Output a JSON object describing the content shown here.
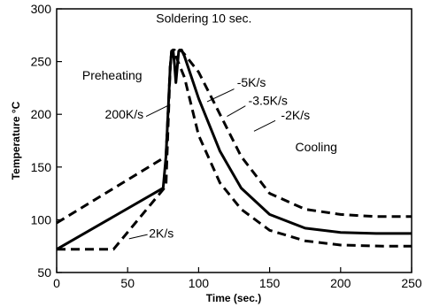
{
  "chart_data": {
    "type": "line",
    "title": "",
    "xlabel": "Time (sec.)",
    "ylabel": "Temperature °C",
    "xlim": [
      0,
      250
    ],
    "ylim": [
      50,
      300
    ],
    "xticks": [
      "0",
      "50",
      "100",
      "150",
      "200",
      "250"
    ],
    "yticks": [
      "50",
      "100",
      "150",
      "200",
      "250",
      "300"
    ],
    "grid": false,
    "legend": "none",
    "series": [
      {
        "style": "dashed",
        "x": [
          0,
          40,
          77,
          80,
          81,
          83,
          84,
          90,
          100,
          115,
          130,
          150,
          175,
          200,
          230,
          250
        ],
        "y": [
          72,
          72,
          132,
          245,
          260,
          261,
          255,
          235,
          180,
          135,
          110,
          90,
          80,
          76,
          75,
          75
        ]
      },
      {
        "style": "solid",
        "x": [
          0,
          75,
          77,
          80,
          81,
          82,
          83,
          84,
          86,
          87,
          88,
          89,
          90,
          100,
          115,
          130,
          150,
          175,
          200,
          225,
          250
        ],
        "y": [
          72,
          130,
          160,
          245,
          260,
          261,
          248,
          230,
          260,
          261,
          261,
          258,
          255,
          215,
          165,
          130,
          105,
          92,
          88,
          87,
          87
        ]
      },
      {
        "style": "dashed",
        "x": [
          0,
          77,
          80,
          81,
          83,
          86,
          88,
          90,
          100,
          115,
          130,
          150,
          175,
          200,
          225,
          250
        ],
        "y": [
          97,
          160,
          245,
          260,
          261,
          261,
          260,
          257,
          240,
          200,
          160,
          125,
          110,
          105,
          103,
          103
        ]
      }
    ],
    "annotations": [
      {
        "text": "Soldering 10 sec.",
        "x": 70,
        "y": 287
      },
      {
        "text": "Preheating",
        "x": 18,
        "y": 233
      },
      {
        "text": "200K/s",
        "x": 34,
        "y": 196
      },
      {
        "text": "-5K/s",
        "x": 127,
        "y": 226
      },
      {
        "text": "-3.5K/s",
        "x": 135,
        "y": 209
      },
      {
        "text": "-2K/s",
        "x": 158,
        "y": 195
      },
      {
        "text": "Cooling",
        "x": 168,
        "y": 165
      },
      {
        "text": "2K/s",
        "x": 65,
        "y": 83
      }
    ],
    "pointers": [
      {
        "from": [
          63,
          198
        ],
        "to": [
          78,
          208
        ]
      },
      {
        "from": [
          125,
          224
        ],
        "to": [
          106,
          212
        ]
      },
      {
        "from": [
          133,
          208
        ],
        "to": [
          120,
          198
        ]
      },
      {
        "from": [
          154,
          194
        ],
        "to": [
          139,
          184
        ]
      },
      {
        "from": [
          64,
          86
        ],
        "to": [
          51,
          82
        ]
      }
    ]
  }
}
